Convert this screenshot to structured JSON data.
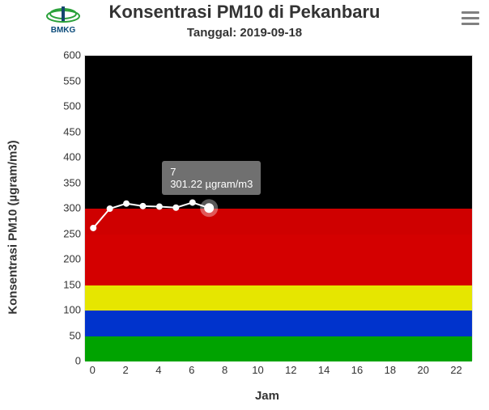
{
  "header": {
    "title": "Konsentrasi PM10 di Pekanbaru",
    "subtitle": "Tanggal: 2019-09-18",
    "logo_label": "BMKG"
  },
  "chart": {
    "type": "line",
    "xlabel": "Jam",
    "ylabel": "Konsentrasi PM10 (µgram/m3)",
    "xlim": [
      -0.5,
      23
    ],
    "ylim": [
      0,
      600
    ],
    "ytick_step": 50,
    "yticks": [
      0,
      50,
      100,
      150,
      200,
      250,
      300,
      350,
      400,
      450,
      500,
      550,
      600
    ],
    "xticks": [
      0,
      2,
      4,
      6,
      8,
      10,
      12,
      14,
      16,
      18,
      20,
      22
    ],
    "background_bands": [
      {
        "from": 0,
        "to": 50,
        "color": "#00a300"
      },
      {
        "from": 50,
        "to": 100,
        "color": "#0033cc"
      },
      {
        "from": 100,
        "to": 150,
        "color": "#e6e600"
      },
      {
        "from": 150,
        "to": 250,
        "color": "#d40000"
      },
      {
        "from": 250,
        "to": 300,
        "color": "#cf0000"
      },
      {
        "from": 300,
        "to": 600,
        "color": "#000000"
      }
    ],
    "series": {
      "name": "PM10",
      "line_color": "#ffffff",
      "line_width": 2,
      "marker_fill": "#ffffff",
      "marker_stroke": "#ffffff",
      "marker_radius": 3.5,
      "x": [
        0,
        1,
        2,
        3,
        4,
        5,
        6,
        7
      ],
      "y": [
        262,
        300,
        310,
        305,
        304,
        302,
        312,
        301.22
      ]
    },
    "highlight": {
      "index": 7,
      "halo_color": "#ffffff",
      "halo_opacity": 0.35,
      "halo_radius": 11,
      "marker_radius": 6
    },
    "tooltip": {
      "line1": "7",
      "line2": "301.22 µgram/m3",
      "bg": "rgba(128,128,128,0.88)",
      "text_color": "#ffffff",
      "fontsize": 13
    },
    "grid_color": "#e0e0e0",
    "title_fontsize": 22,
    "subtitle_fontsize": 15,
    "label_fontsize": 15,
    "tick_fontsize": 13
  }
}
